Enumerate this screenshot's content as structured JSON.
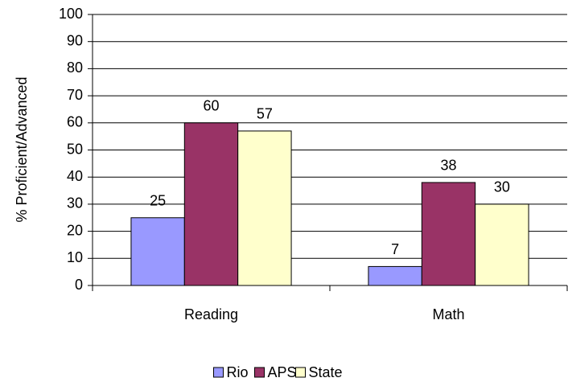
{
  "chart_data": {
    "type": "bar",
    "y_label": "% Proficient/Advanced",
    "categories": [
      "Reading",
      "Math"
    ],
    "series": [
      {
        "name": "Rio",
        "color": "#9999ff",
        "values": [
          25,
          7
        ]
      },
      {
        "name": "APS",
        "color": "#993366",
        "values": [
          60,
          38
        ]
      },
      {
        "name": "State",
        "color": "#ffffcc",
        "values": [
          57,
          30
        ]
      }
    ],
    "ylim": [
      0,
      100
    ],
    "yticks": [
      0,
      10,
      20,
      30,
      40,
      50,
      60,
      70,
      80,
      90,
      100
    ],
    "grid": true,
    "legend": "bottom"
  }
}
